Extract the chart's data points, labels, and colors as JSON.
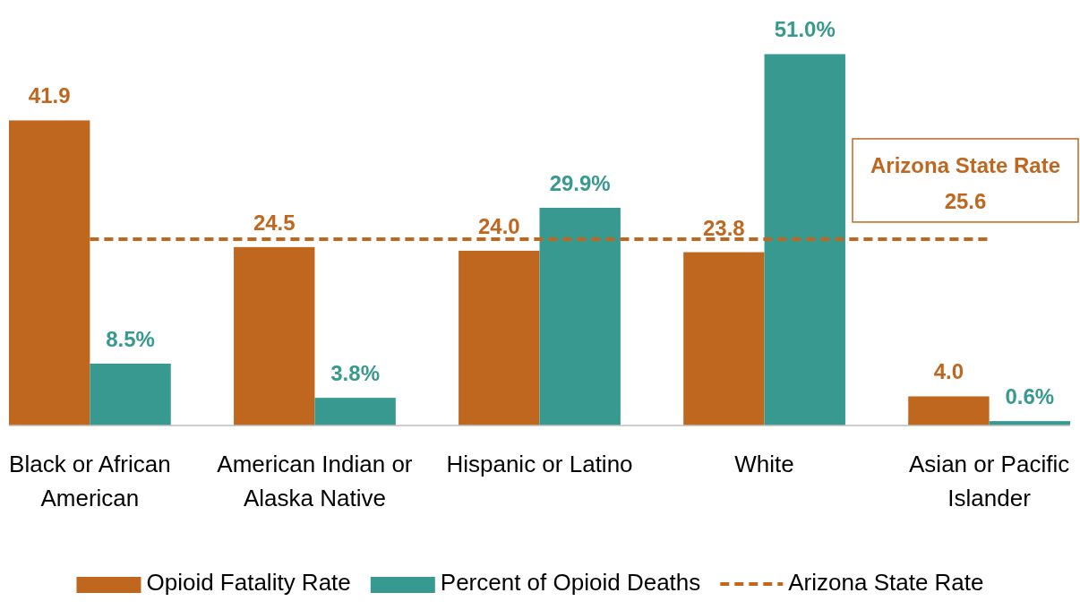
{
  "chart_data": {
    "type": "bar",
    "categories": [
      "Black or African American",
      "American Indian or Alaska Native",
      "Hispanic or Latino",
      "White",
      "Asian or Pacific Islander"
    ],
    "series": [
      {
        "name": "Opioid Fatality Rate",
        "color": "#c0671f",
        "values": [
          41.9,
          24.5,
          24.0,
          23.8,
          4.0
        ],
        "value_labels": [
          "41.9",
          "24.5",
          "24.0",
          "23.8",
          "4.0"
        ]
      },
      {
        "name": "Percent of Opioid Deaths",
        "color": "#389990",
        "values": [
          8.5,
          3.8,
          29.9,
          51.0,
          0.6
        ],
        "value_labels": [
          "8.5%",
          "3.8%",
          "29.9%",
          "51.0%",
          "0.6%"
        ]
      }
    ],
    "tick_labels": "x",
    "ref_lines": [
      {
        "axis": "y",
        "value": 25.6,
        "label": "Arizona State Rate",
        "color": "#c0671f",
        "line_style": "dashed"
      }
    ],
    "annotations": [
      "25.6"
    ],
    "legend": "bottom"
  }
}
